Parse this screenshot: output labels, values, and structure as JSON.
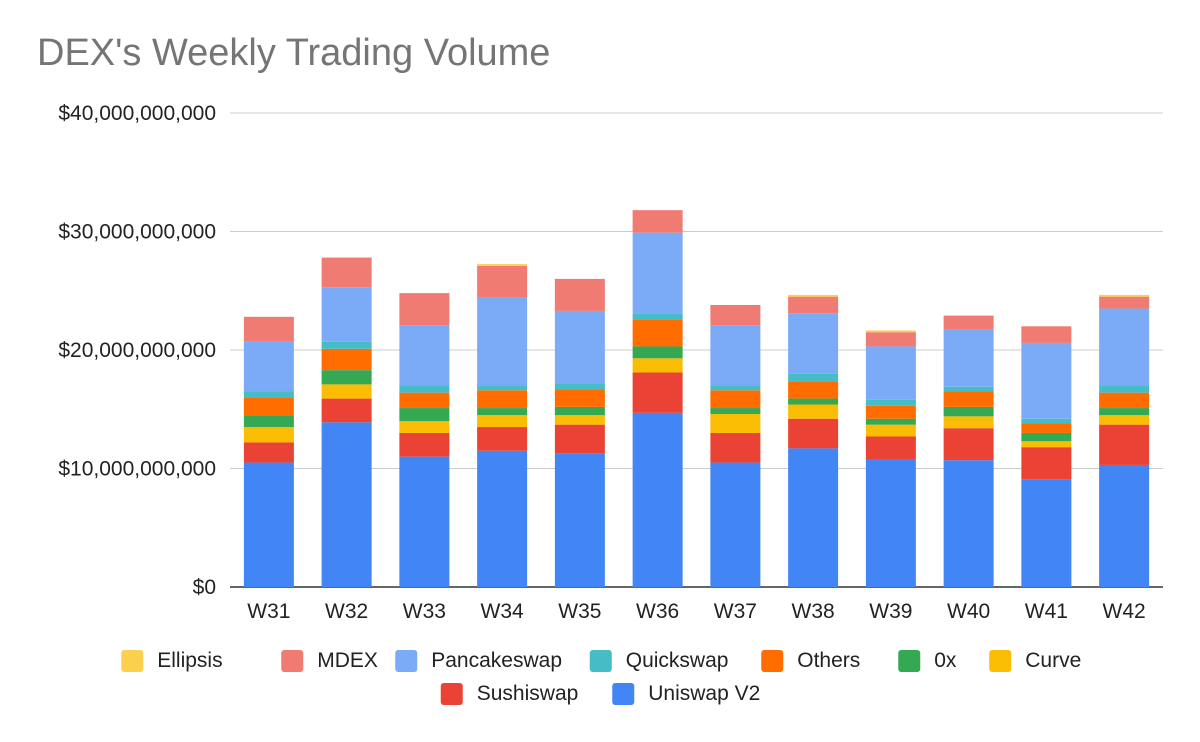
{
  "chart_data": {
    "type": "bar",
    "stacked": true,
    "title": "DEX's Weekly Trading Volume",
    "xlabel": "",
    "ylabel": "",
    "ylim": [
      0,
      40000000000
    ],
    "yticks": [
      0,
      10000000000,
      20000000000,
      30000000000,
      40000000000
    ],
    "ytick_labels": [
      "$0",
      "$10,000,000,000",
      "$20,000,000,000",
      "$30,000,000,000",
      "$40,000,000,000"
    ],
    "grid": true,
    "legend_position": "bottom",
    "categories": [
      "W31",
      "W32",
      "W33",
      "W34",
      "W35",
      "W36",
      "W37",
      "W38",
      "W39",
      "W40",
      "W41",
      "W42"
    ],
    "series": [
      {
        "name": "Uniswap V2",
        "color": "#4285F4",
        "values": [
          10500000000,
          13900000000,
          11000000000,
          11500000000,
          11300000000,
          14700000000,
          10500000000,
          11700000000,
          10800000000,
          10700000000,
          9100000000,
          10300000000
        ]
      },
      {
        "name": "Sushiswap",
        "color": "#EA4335",
        "values": [
          1700000000,
          2000000000,
          2000000000,
          2000000000,
          2400000000,
          3400000000,
          2500000000,
          2500000000,
          1900000000,
          2700000000,
          2700000000,
          3400000000
        ]
      },
      {
        "name": "Curve",
        "color": "#FBBC04",
        "values": [
          1300000000,
          1200000000,
          1000000000,
          1000000000,
          800000000,
          1200000000,
          1600000000,
          1200000000,
          1000000000,
          1000000000,
          500000000,
          800000000
        ]
      },
      {
        "name": "0x",
        "color": "#34A853",
        "values": [
          1000000000,
          1200000000,
          1100000000,
          600000000,
          700000000,
          1000000000,
          500000000,
          500000000,
          500000000,
          800000000,
          700000000,
          600000000
        ]
      },
      {
        "name": "Others",
        "color": "#FF6D01",
        "values": [
          1500000000,
          1800000000,
          1300000000,
          1500000000,
          1500000000,
          2300000000,
          1500000000,
          1400000000,
          1100000000,
          1300000000,
          800000000,
          1300000000
        ]
      },
      {
        "name": "Quickswap",
        "color": "#46BDC6",
        "values": [
          500000000,
          600000000,
          600000000,
          400000000,
          500000000,
          500000000,
          400000000,
          700000000,
          500000000,
          400000000,
          400000000,
          600000000
        ]
      },
      {
        "name": "Pancakeswap",
        "color": "#7BAAF7",
        "values": [
          4200000000,
          4600000000,
          5100000000,
          7400000000,
          6100000000,
          6800000000,
          5100000000,
          5100000000,
          4500000000,
          4800000000,
          6400000000,
          6500000000
        ]
      },
      {
        "name": "MDEX",
        "color": "#F07B72",
        "values": [
          2100000000,
          2500000000,
          2700000000,
          2700000000,
          2700000000,
          1900000000,
          1700000000,
          1400000000,
          1200000000,
          1200000000,
          1400000000,
          1000000000
        ]
      },
      {
        "name": "Ellipsis",
        "color": "#FCD04F",
        "values": [
          0,
          0,
          0,
          150000000,
          0,
          0,
          0,
          150000000,
          150000000,
          0,
          0,
          150000000
        ]
      }
    ],
    "legend_order": [
      "Ellipsis",
      "MDEX",
      "Pancakeswap",
      "Quickswap",
      "Others",
      "0x",
      "Curve",
      "Sushiswap",
      "Uniswap V2"
    ]
  }
}
